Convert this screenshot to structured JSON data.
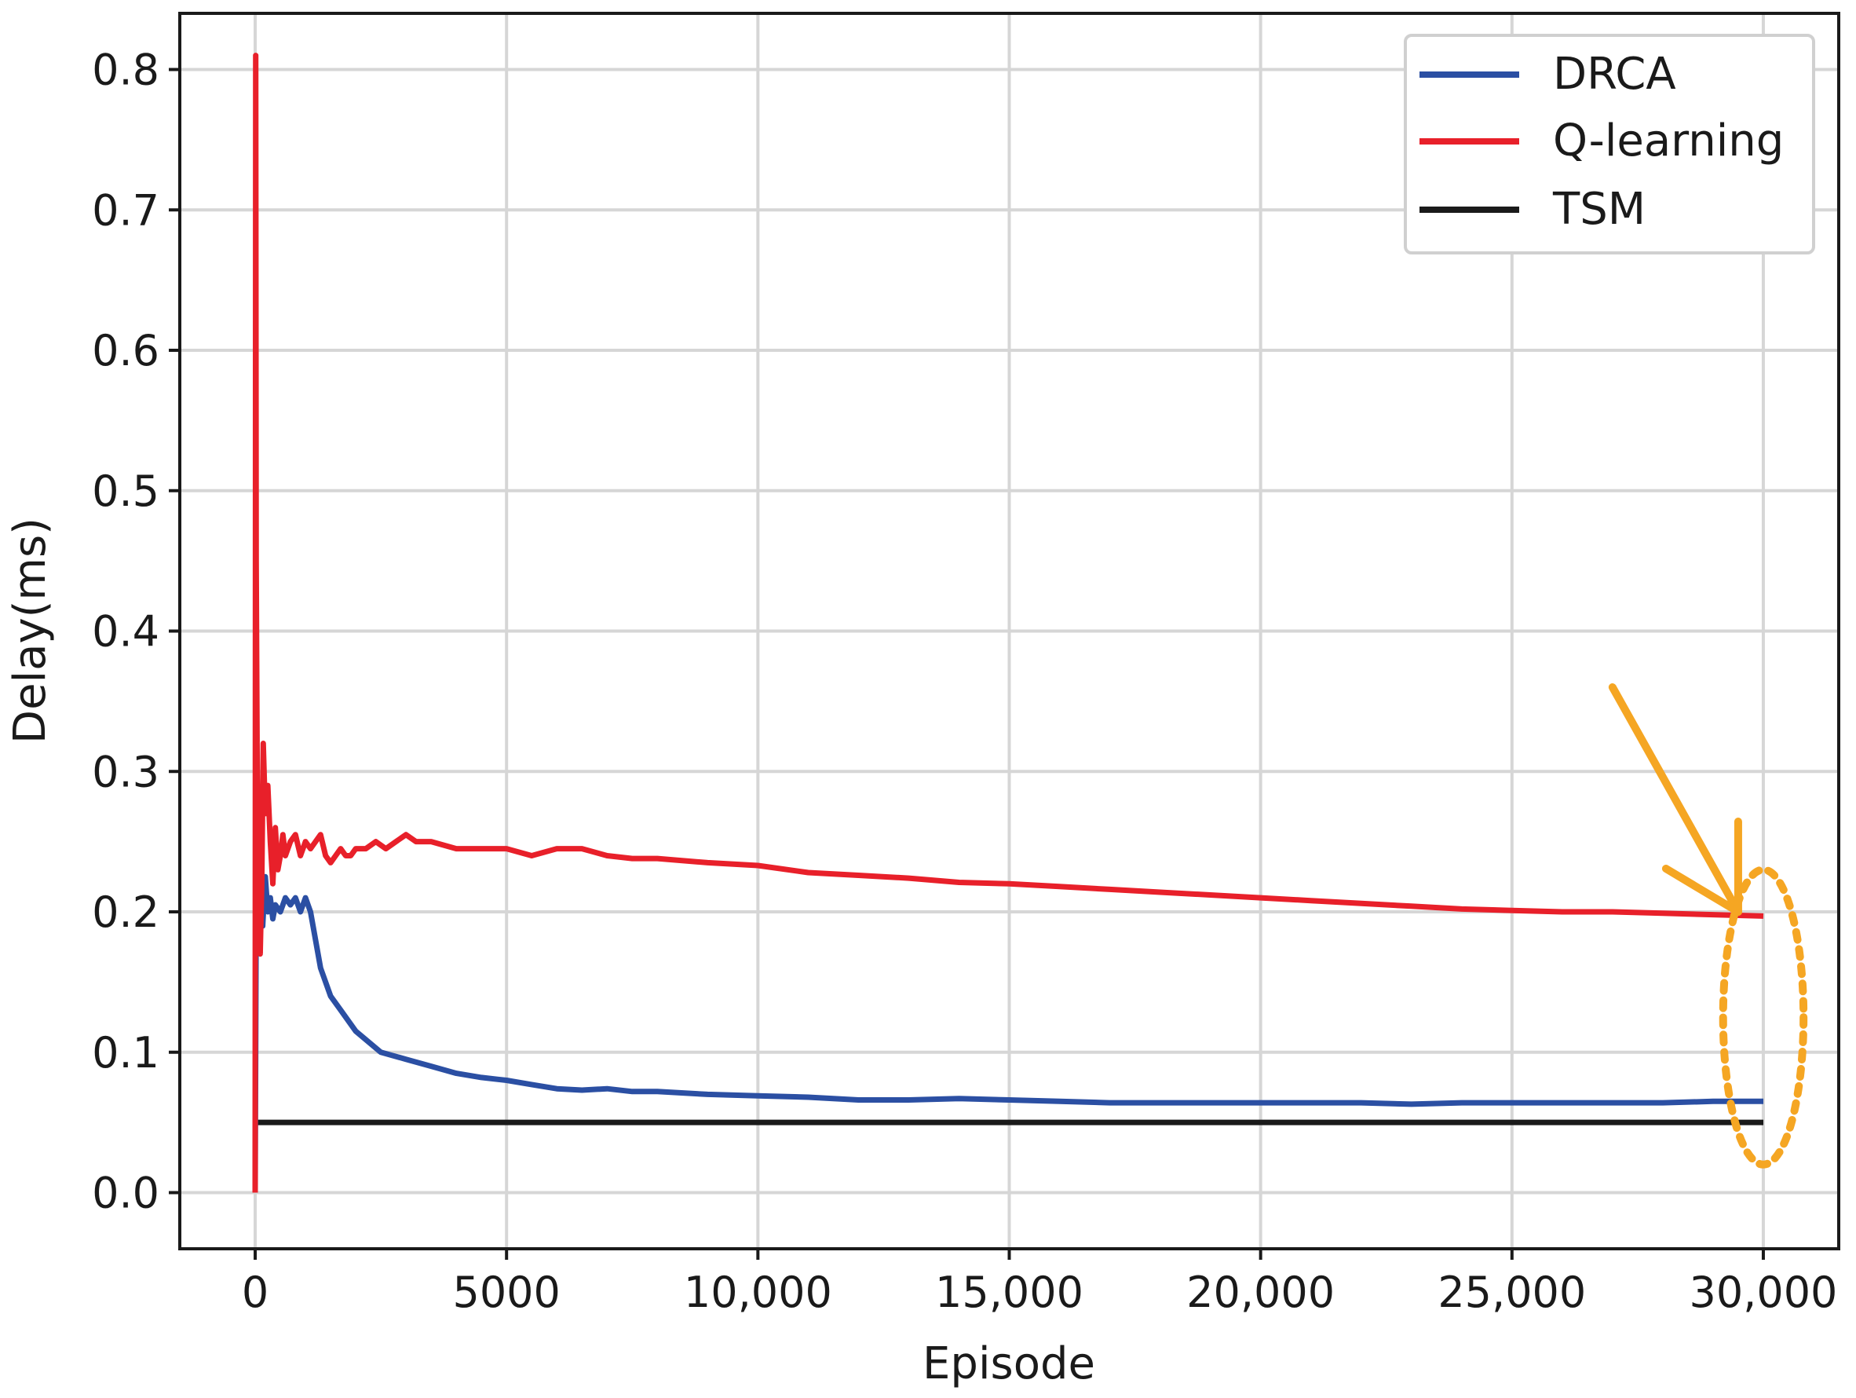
{
  "chart_data": {
    "type": "line",
    "title": "",
    "xlabel": "Episode",
    "ylabel": "Delay(ms)",
    "xlim": [
      -1500,
      31500
    ],
    "ylim": [
      -0.04,
      0.84
    ],
    "x_ticks": [
      0,
      5000,
      10000,
      15000,
      20000,
      25000,
      30000
    ],
    "x_tick_labels": [
      "0",
      "5000",
      "10,000",
      "15,000",
      "20,000",
      "25,000",
      "30,000"
    ],
    "y_ticks": [
      0.0,
      0.1,
      0.2,
      0.3,
      0.4,
      0.5,
      0.6,
      0.7,
      0.8
    ],
    "y_tick_labels": [
      "0.0",
      "0.1",
      "0.2",
      "0.3",
      "0.4",
      "0.5",
      "0.6",
      "0.7",
      "0.8"
    ],
    "grid": true,
    "legend_position": "top-right",
    "series": [
      {
        "name": "DRCA",
        "color": "#2b4fa3",
        "x": [
          0,
          20,
          50,
          100,
          150,
          200,
          250,
          300,
          350,
          400,
          500,
          600,
          700,
          800,
          900,
          1000,
          1100,
          1200,
          1300,
          1500,
          1700,
          2000,
          2500,
          3000,
          3500,
          4000,
          4500,
          5000,
          5500,
          6000,
          6500,
          7000,
          7500,
          8000,
          9000,
          10000,
          11000,
          12000,
          13000,
          14000,
          15000,
          16000,
          17000,
          18000,
          19000,
          20000,
          21000,
          22000,
          23000,
          24000,
          25000,
          26000,
          27000,
          28000,
          29000,
          30000
        ],
        "y": [
          0.0,
          0.2,
          0.21,
          0.2,
          0.19,
          0.225,
          0.2,
          0.21,
          0.195,
          0.205,
          0.2,
          0.21,
          0.205,
          0.21,
          0.2,
          0.21,
          0.2,
          0.18,
          0.16,
          0.14,
          0.13,
          0.115,
          0.1,
          0.095,
          0.09,
          0.085,
          0.082,
          0.08,
          0.077,
          0.074,
          0.073,
          0.074,
          0.072,
          0.072,
          0.07,
          0.069,
          0.068,
          0.066,
          0.066,
          0.067,
          0.066,
          0.065,
          0.064,
          0.064,
          0.064,
          0.064,
          0.064,
          0.064,
          0.063,
          0.064,
          0.064,
          0.064,
          0.064,
          0.064,
          0.065,
          0.065
        ]
      },
      {
        "name": "Q-learning",
        "color": "#e8202a",
        "x": [
          0,
          10,
          20,
          40,
          60,
          80,
          100,
          130,
          160,
          200,
          250,
          300,
          350,
          400,
          450,
          500,
          550,
          600,
          700,
          800,
          900,
          1000,
          1100,
          1200,
          1300,
          1400,
          1500,
          1600,
          1700,
          1800,
          1900,
          2000,
          2200,
          2400,
          2600,
          2800,
          3000,
          3200,
          3500,
          4000,
          4500,
          5000,
          5500,
          6000,
          6500,
          7000,
          7500,
          8000,
          9000,
          10000,
          11000,
          12000,
          13000,
          14000,
          15000,
          16000,
          17000,
          18000,
          19000,
          20000,
          21000,
          22000,
          23000,
          24000,
          25000,
          26000,
          27000,
          28000,
          29000,
          30000
        ],
        "y": [
          0.0,
          0.81,
          0.45,
          0.3,
          0.21,
          0.2,
          0.17,
          0.22,
          0.32,
          0.27,
          0.29,
          0.25,
          0.22,
          0.26,
          0.23,
          0.24,
          0.255,
          0.24,
          0.25,
          0.255,
          0.24,
          0.25,
          0.245,
          0.25,
          0.255,
          0.24,
          0.235,
          0.24,
          0.245,
          0.24,
          0.24,
          0.245,
          0.245,
          0.25,
          0.245,
          0.25,
          0.255,
          0.25,
          0.25,
          0.245,
          0.245,
          0.245,
          0.24,
          0.245,
          0.245,
          0.24,
          0.238,
          0.238,
          0.235,
          0.233,
          0.228,
          0.226,
          0.224,
          0.221,
          0.22,
          0.218,
          0.216,
          0.214,
          0.212,
          0.21,
          0.208,
          0.206,
          0.204,
          0.202,
          0.201,
          0.2,
          0.2,
          0.199,
          0.198,
          0.197
        ]
      },
      {
        "name": "TSM",
        "color": "#1a1a1a",
        "x": [
          0,
          30000
        ],
        "y": [
          0.05,
          0.05
        ]
      }
    ],
    "annotations": [
      {
        "type": "arrow",
        "color": "#f5a623",
        "from": [
          27000,
          0.36
        ],
        "to": [
          29500,
          0.2
        ]
      },
      {
        "type": "dotted-ellipse",
        "color": "#f5a623",
        "center": [
          30000,
          0.125
        ],
        "radius": [
          800,
          0.105
        ]
      }
    ]
  }
}
